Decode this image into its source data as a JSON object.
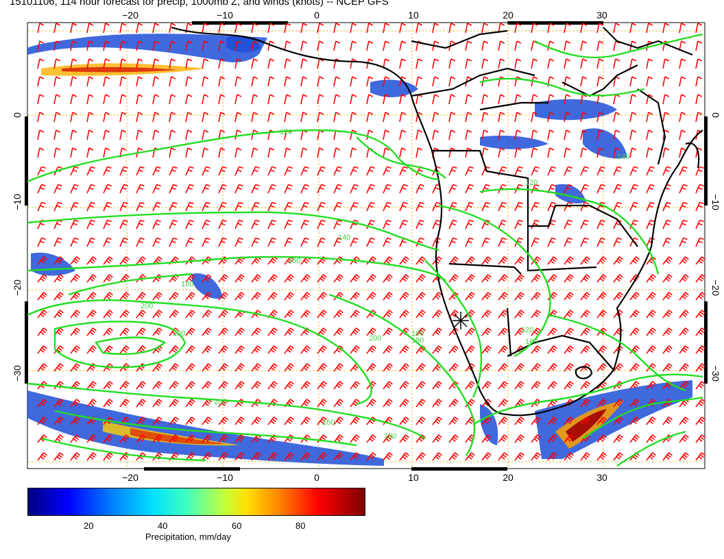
{
  "title": "15101106, 114 hour forecast for precip, 1000mb Z, and winds (knots) -- NCEP GFS",
  "map": {
    "top_lon_labels": [
      "−20",
      "−10",
      "0",
      "10",
      "20",
      "30"
    ],
    "bottom_lon_labels": [
      "−20",
      "−10",
      "0",
      "10",
      "20",
      "30"
    ],
    "left_lat_labels": [
      "0",
      "−10",
      "−20",
      "−30"
    ],
    "right_lat_labels": [
      "0",
      "−10",
      "−20",
      "−30"
    ],
    "contour_labels": [
      "120",
      "120",
      "140",
      "160",
      "180",
      "200",
      "200",
      "200",
      "180",
      "160",
      "180",
      "200",
      "140",
      "160",
      "100",
      "120"
    ],
    "colors": {
      "contour": "#22dd22",
      "wind_barb": "#ff0000",
      "coastline": "#000000",
      "grid": "#e0b000"
    },
    "marker": "star-marker"
  },
  "colorbar": {
    "tick_labels": [
      "20",
      "40",
      "60",
      "80"
    ],
    "title": "Precipitation, mm/day"
  }
}
